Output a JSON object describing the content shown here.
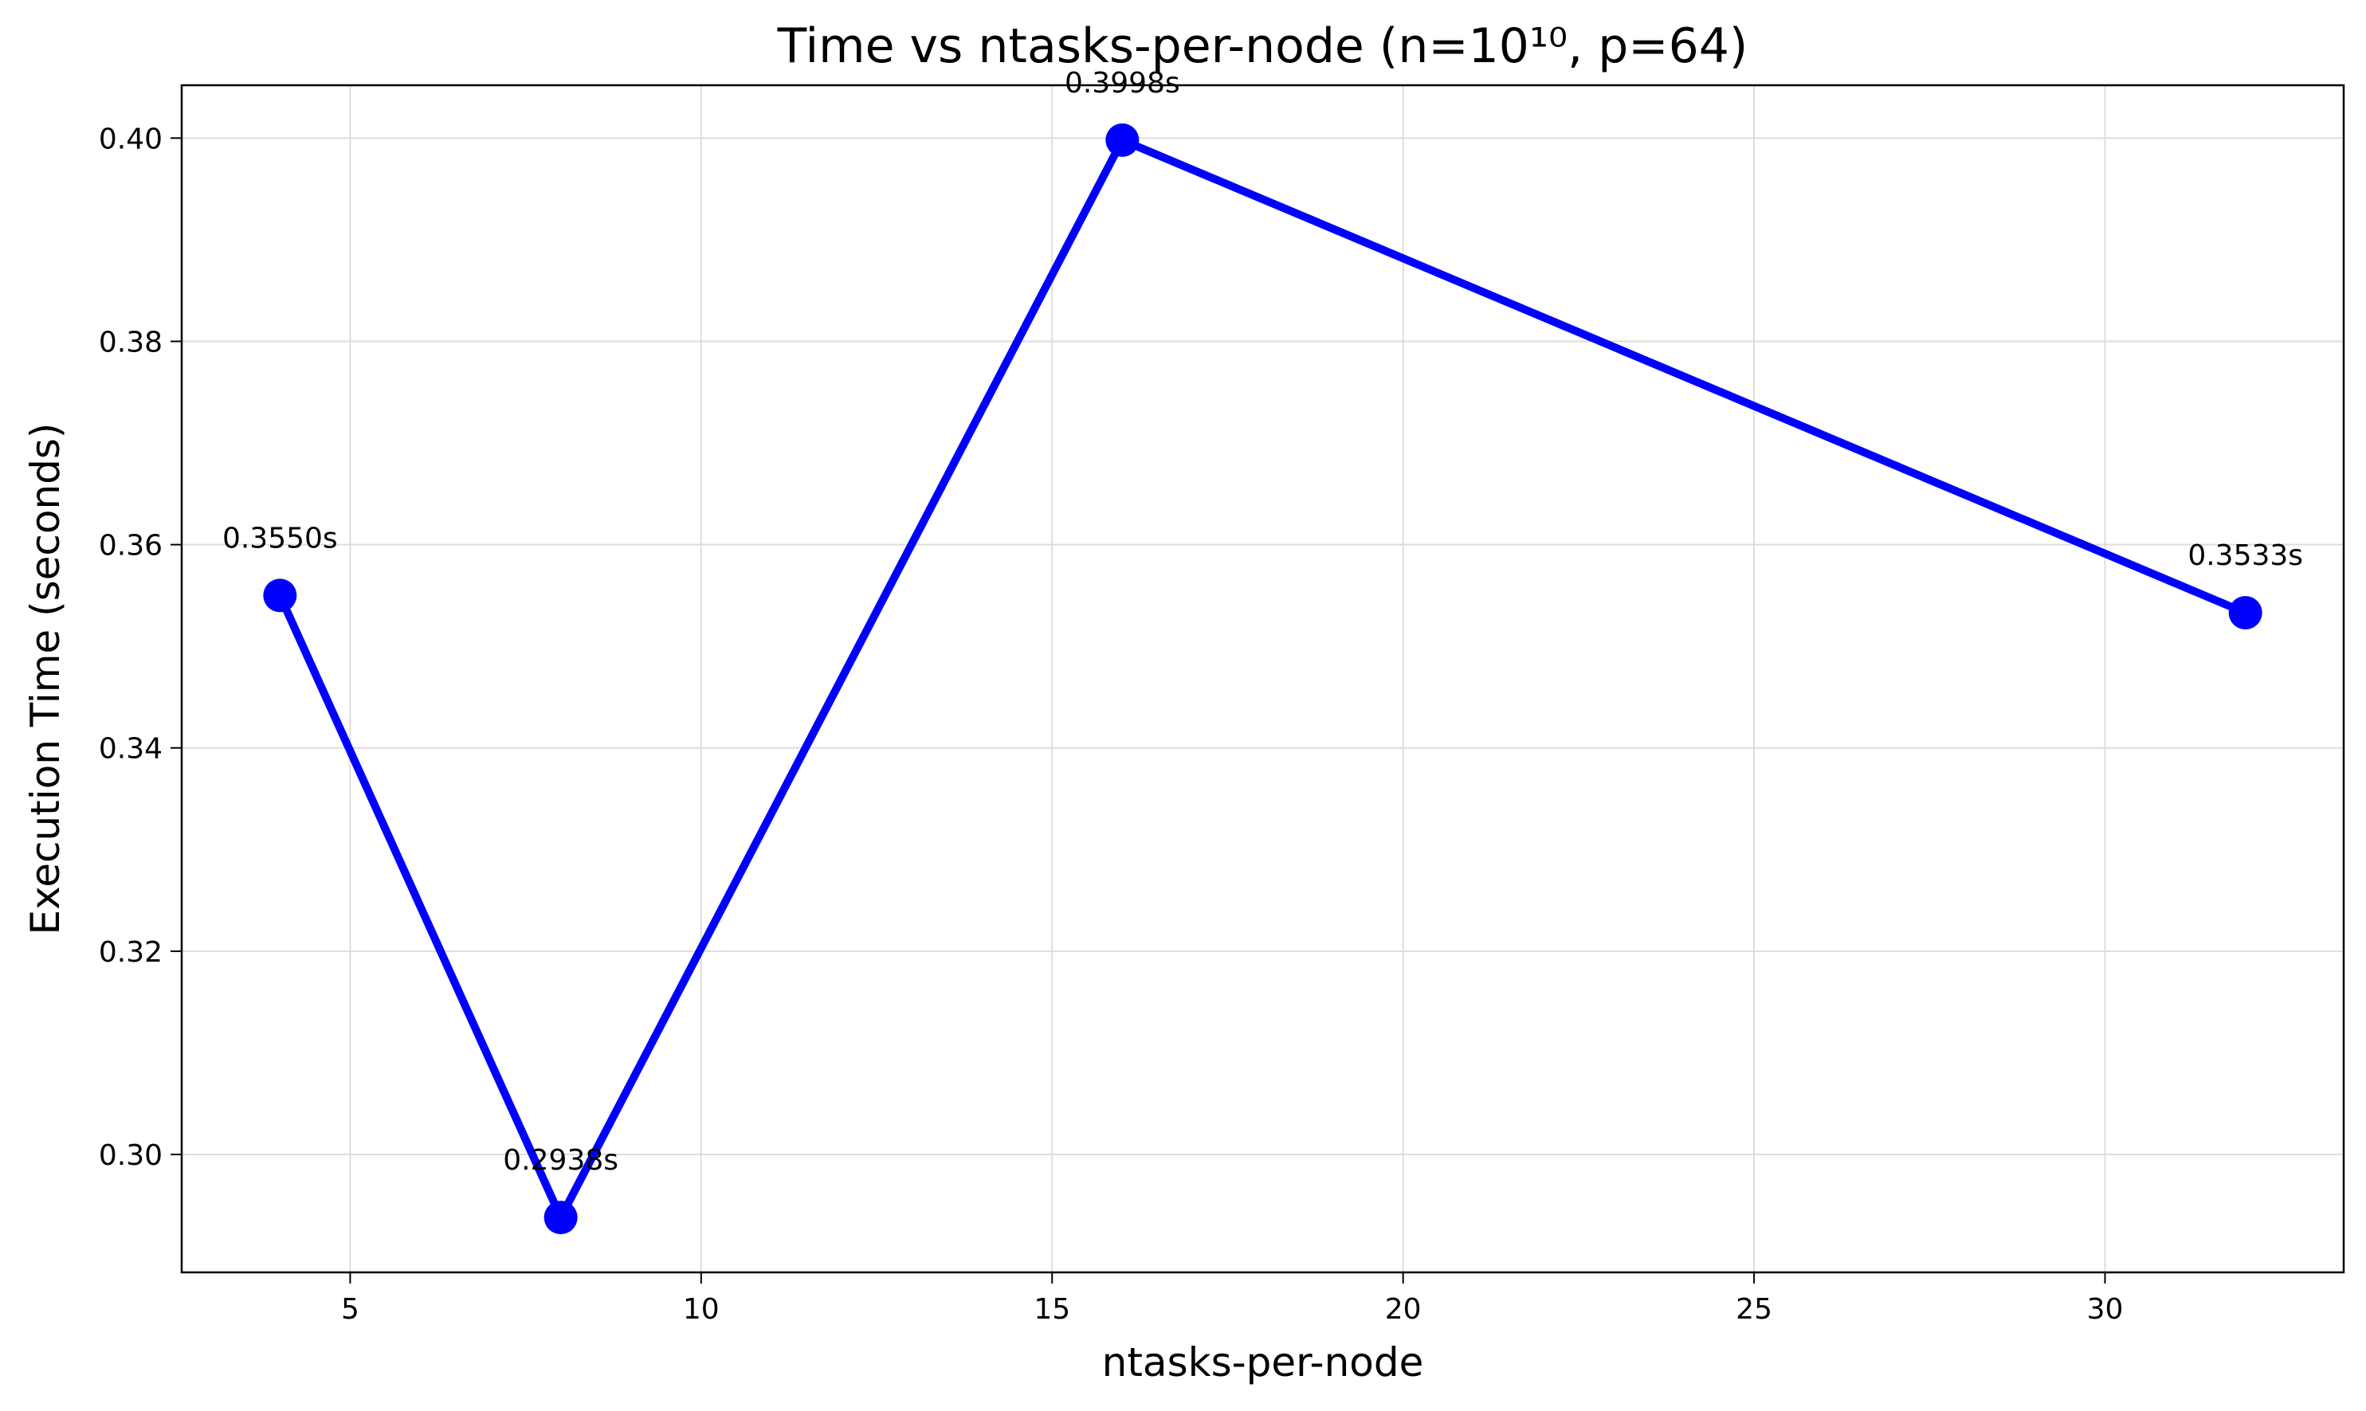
{
  "chart_data": {
    "type": "line",
    "title": "Time vs ntasks-per-node (n=10¹⁰, p=64)",
    "xlabel": "ntasks-per-node",
    "ylabel": "Execution Time (seconds)",
    "xlim": [
      2.6,
      33.4
    ],
    "ylim": [
      0.2884,
      0.4052
    ],
    "xticks": [
      5,
      10,
      15,
      20,
      25,
      30
    ],
    "xtick_labels": [
      "5",
      "10",
      "15",
      "20",
      "25",
      "30"
    ],
    "yticks": [
      0.3,
      0.32,
      0.34,
      0.36,
      0.38,
      0.4
    ],
    "ytick_labels": [
      "0.30",
      "0.32",
      "0.34",
      "0.36",
      "0.38",
      "0.40"
    ],
    "grid": true,
    "series": [
      {
        "color": "#0000ff",
        "marker": "circle",
        "x": [
          4,
          8,
          16,
          32
        ],
        "y": [
          0.355,
          0.2938,
          0.3998,
          0.3533
        ],
        "labels": [
          "0.3550s",
          "0.2938s",
          "0.3998s",
          "0.3533s"
        ]
      }
    ]
  }
}
